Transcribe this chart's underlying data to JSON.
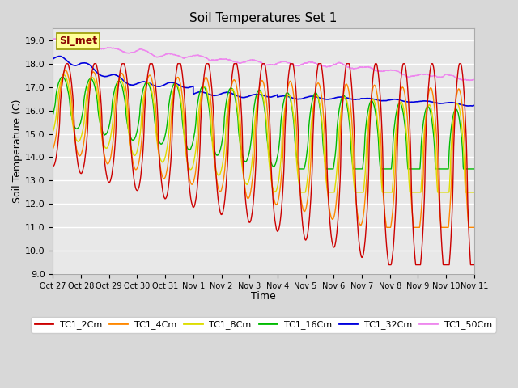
{
  "title": "Soil Temperatures Set 1",
  "xlabel": "Time",
  "ylabel": "Soil Temperature (C)",
  "ylim": [
    9.0,
    19.5
  ],
  "yticks": [
    9.0,
    10.0,
    11.0,
    12.0,
    13.0,
    14.0,
    15.0,
    16.0,
    17.0,
    18.0,
    19.0
  ],
  "background_color": "#d8d8d8",
  "plot_bg_color": "#e8e8e8",
  "grid_color": "#ffffff",
  "colors": {
    "TC1_2Cm": "#cc0000",
    "TC1_4Cm": "#ff8800",
    "TC1_8Cm": "#dddd00",
    "TC1_16Cm": "#00bb00",
    "TC1_32Cm": "#0000dd",
    "TC1_50Cm": "#ee88ee"
  },
  "legend_label": "SI_met",
  "legend_box_color": "#ffff99",
  "legend_box_edge": "#999900",
  "tick_labels": [
    "Oct 27",
    "Oct 28",
    "Oct 29",
    "Oct 30",
    "Oct 31",
    "Nov 1",
    "Nov 2",
    "Nov 3",
    "Nov 4",
    "Nov 5",
    "Nov 6",
    "Nov 7",
    "Nov 8",
    "Nov 9",
    "Nov 10",
    "Nov 11"
  ]
}
